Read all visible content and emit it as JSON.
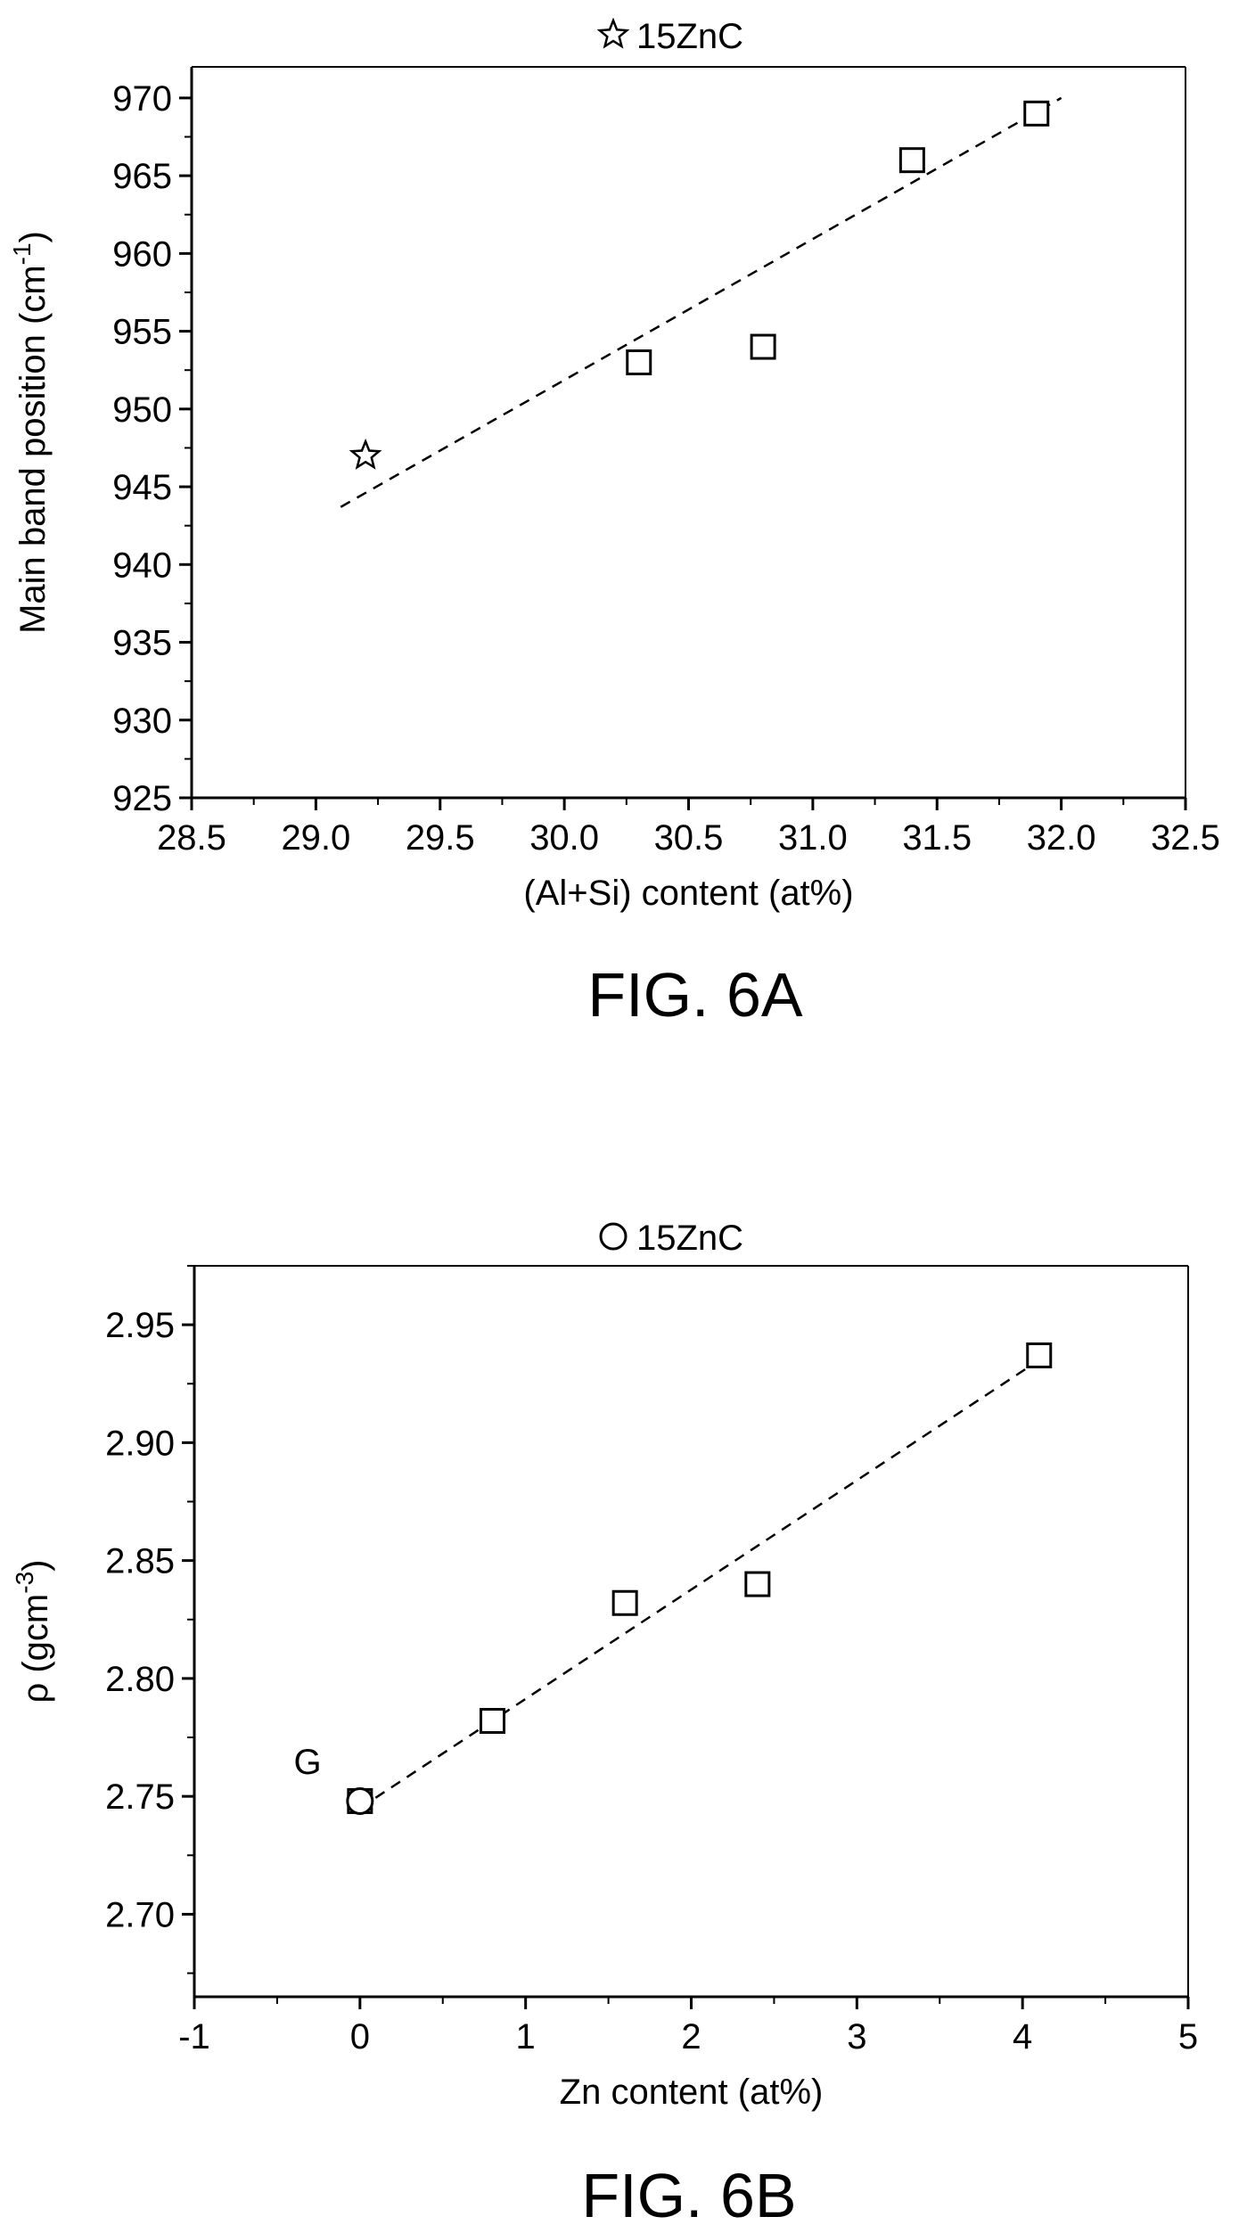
{
  "figures": [
    {
      "caption": "FIG. 6A",
      "chart_data": {
        "type": "scatter",
        "xlabel": "(Al+Si) content (at%)",
        "ylabel": "Main band position (cm",
        "ylabel_sup": "-1",
        "ylabel_close": ")",
        "xlim": [
          28.5,
          32.5
        ],
        "ylim": [
          925,
          972
        ],
        "xticks": [
          28.5,
          29.0,
          29.5,
          30.0,
          30.5,
          31.0,
          31.5,
          32.0,
          32.5
        ],
        "xtick_labels": [
          "28.5",
          "29.0",
          "29.5",
          "30.0",
          "30.5",
          "31.0",
          "31.5",
          "32.0",
          "32.5"
        ],
        "yticks": [
          925,
          930,
          935,
          940,
          945,
          950,
          955,
          960,
          965,
          970
        ],
        "ytick_labels": [
          "925",
          "930",
          "935",
          "940",
          "945",
          "950",
          "955",
          "960",
          "965",
          "970"
        ],
        "legend": {
          "marker": "star",
          "label": "15ZnC",
          "placement": "top-center"
        },
        "series": [
          {
            "marker": "square",
            "x": [
              30.3,
              30.8,
              31.4,
              31.9
            ],
            "y": [
              953,
              954,
              966,
              969
            ]
          },
          {
            "marker": "star",
            "x": [
              29.2
            ],
            "y": [
              947
            ]
          }
        ],
        "fit_line": {
          "style": "dashed",
          "x": [
            29.1,
            32.0
          ],
          "y": [
            943.7,
            970.0
          ]
        },
        "annotations": []
      }
    },
    {
      "caption": "FIG. 6B",
      "chart_data": {
        "type": "scatter",
        "xlabel": "Zn content (at%)",
        "ylabel": "ρ (gcm",
        "ylabel_sup": "-3",
        "ylabel_close": ")",
        "xlim": [
          -1,
          5
        ],
        "ylim": [
          2.665,
          2.975
        ],
        "xticks": [
          -1,
          0,
          1,
          2,
          3,
          4,
          5
        ],
        "xtick_labels": [
          "-1",
          "0",
          "1",
          "2",
          "3",
          "4",
          "5"
        ],
        "yticks": [
          2.7,
          2.75,
          2.8,
          2.85,
          2.9,
          2.95
        ],
        "ytick_labels": [
          "2.70",
          "2.75",
          "2.80",
          "2.85",
          "2.90",
          "2.95"
        ],
        "legend": {
          "marker": "circle",
          "label": "15ZnC",
          "placement": "top-center"
        },
        "series": [
          {
            "marker": "square",
            "x": [
              0.0,
              0.8,
              1.6,
              2.4,
              4.1
            ],
            "y": [
              2.748,
              2.782,
              2.832,
              2.84,
              2.937
            ]
          },
          {
            "marker": "circle",
            "x": [
              0.0
            ],
            "y": [
              2.748
            ]
          }
        ],
        "fit_line": {
          "style": "dashed",
          "x": [
            0.0,
            4.1
          ],
          "y": [
            2.745,
            2.935
          ]
        },
        "annotations": [
          {
            "text": "G",
            "x": -0.2,
            "y": 2.758
          }
        ]
      }
    }
  ]
}
